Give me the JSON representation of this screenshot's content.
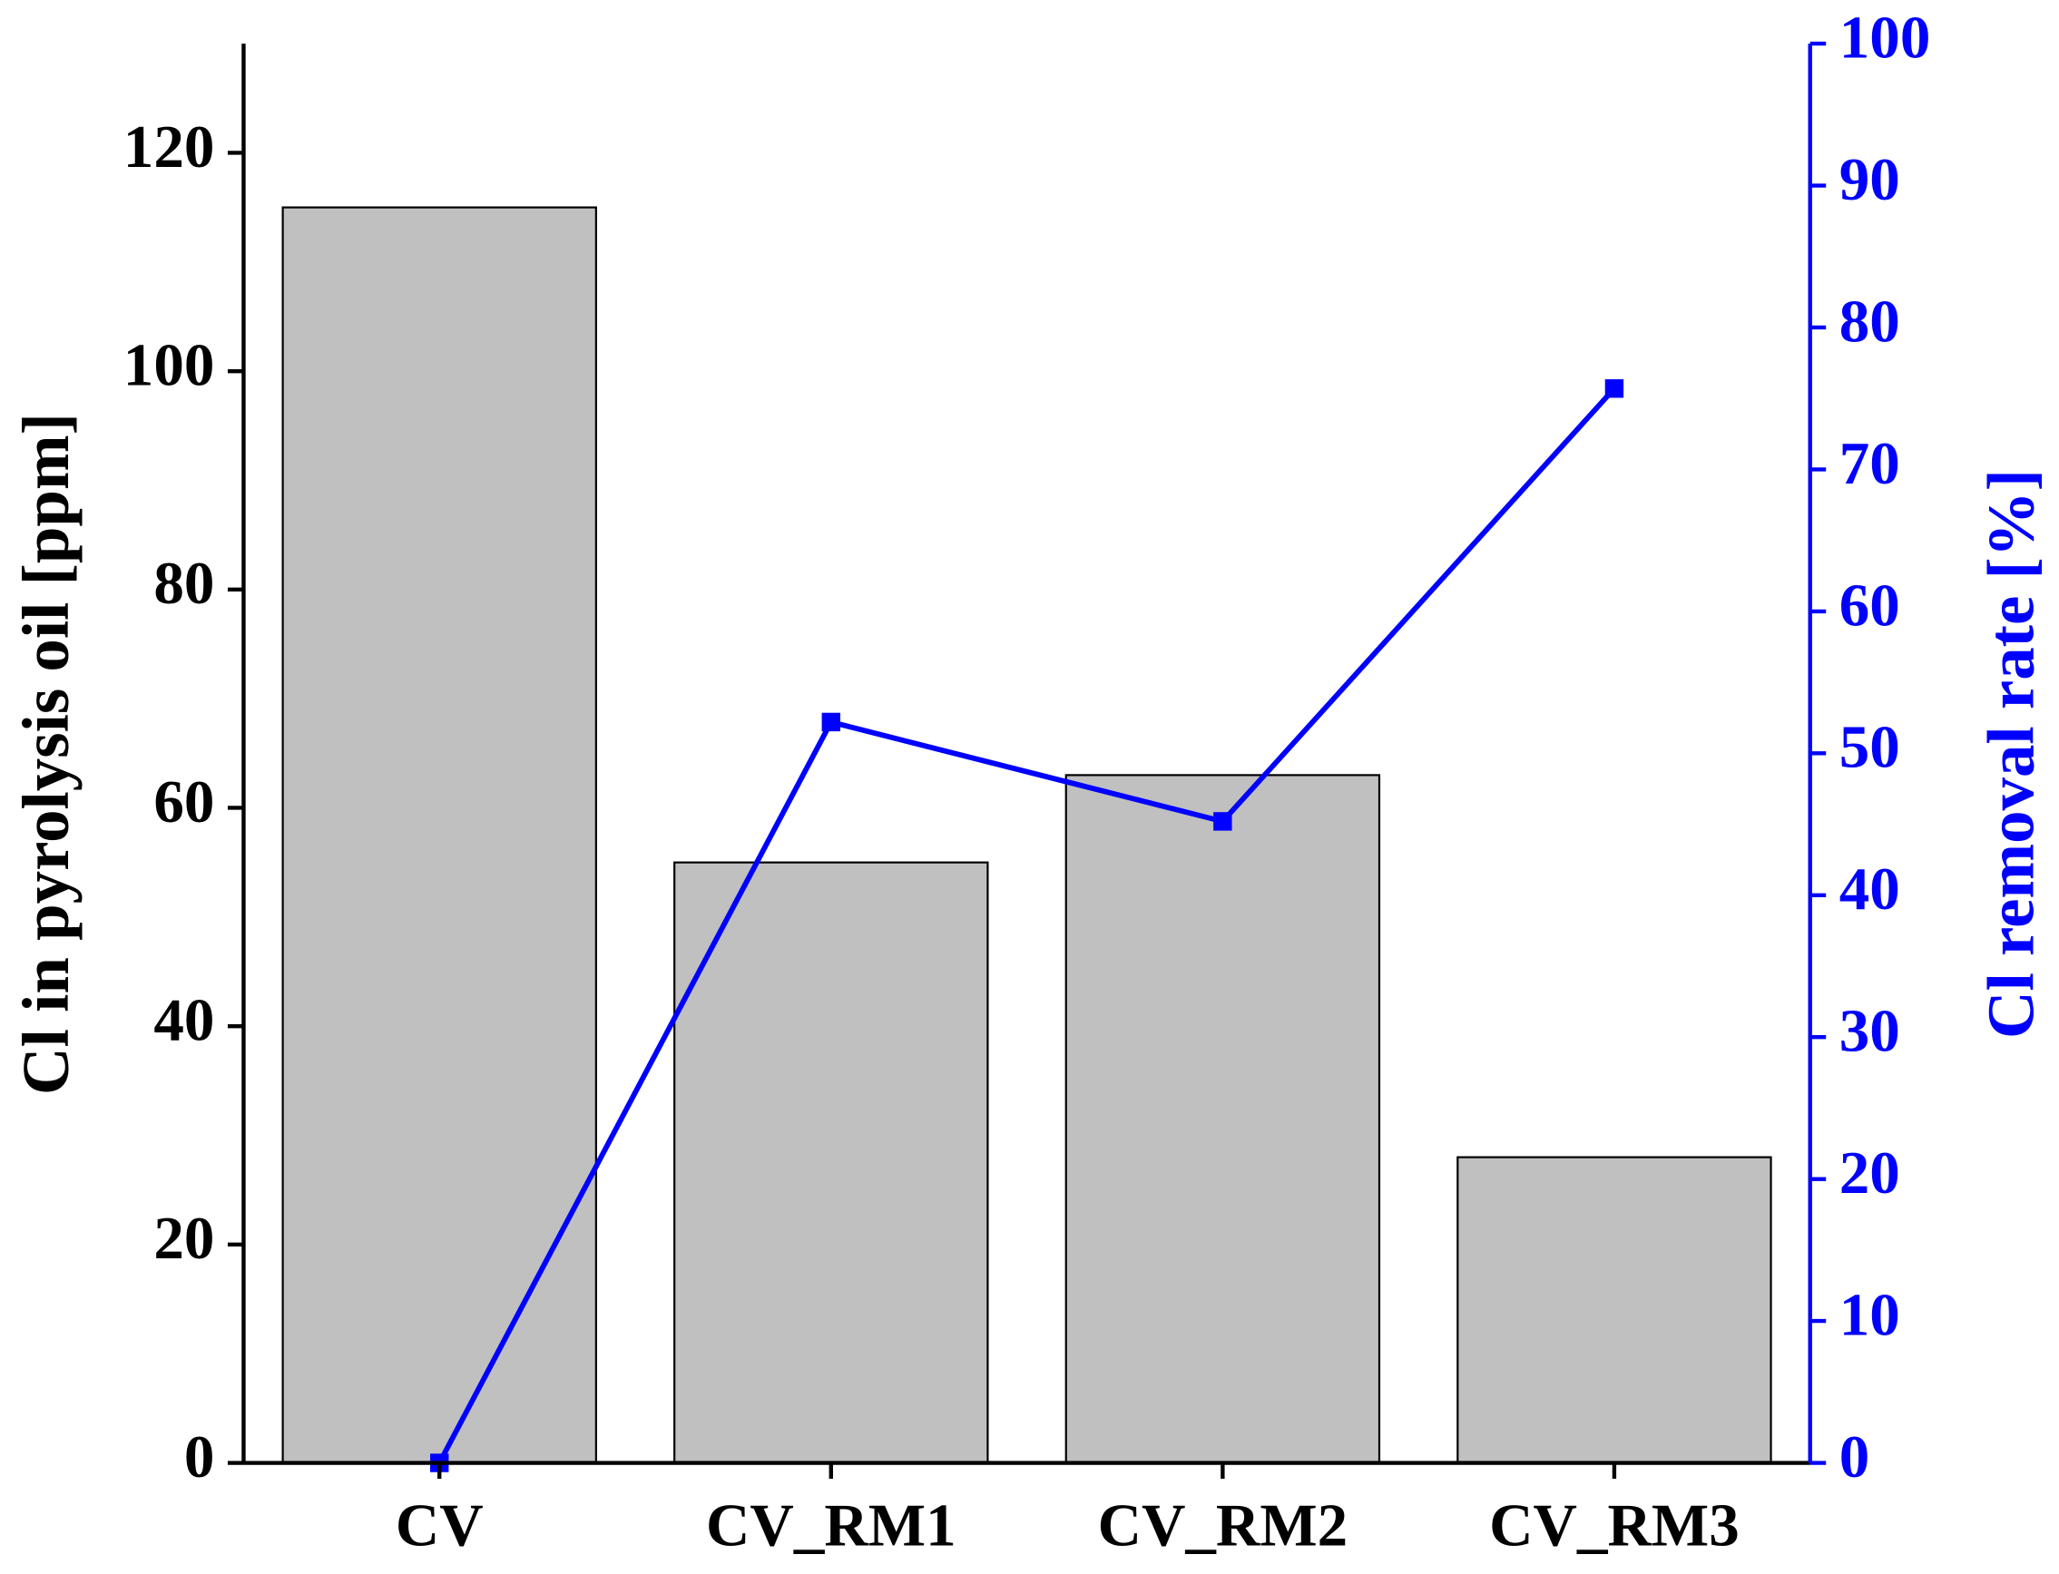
{
  "chart_data": {
    "type": "bar",
    "categories": [
      "CV",
      "CV_RM1",
      "CV_RM2",
      "CV_RM3"
    ],
    "ylabel": "Cl in pyrolysis oil [ppm]",
    "y2label": "Cl removal rate [%]",
    "ylim": [
      0,
      130
    ],
    "yticks": [
      0,
      20,
      40,
      60,
      80,
      100,
      120
    ],
    "y2lim": [
      0,
      100
    ],
    "y2ticks": [
      0,
      10,
      20,
      30,
      40,
      50,
      60,
      70,
      80,
      90,
      100
    ],
    "series": [
      {
        "type": "bar",
        "color": "#c0c0c0",
        "values": [
          115,
          55,
          63,
          28
        ]
      },
      {
        "type": "line",
        "axis": "y2",
        "color": "#0000ff",
        "values": [
          0,
          52.2,
          45.2,
          75.7
        ]
      }
    ]
  }
}
